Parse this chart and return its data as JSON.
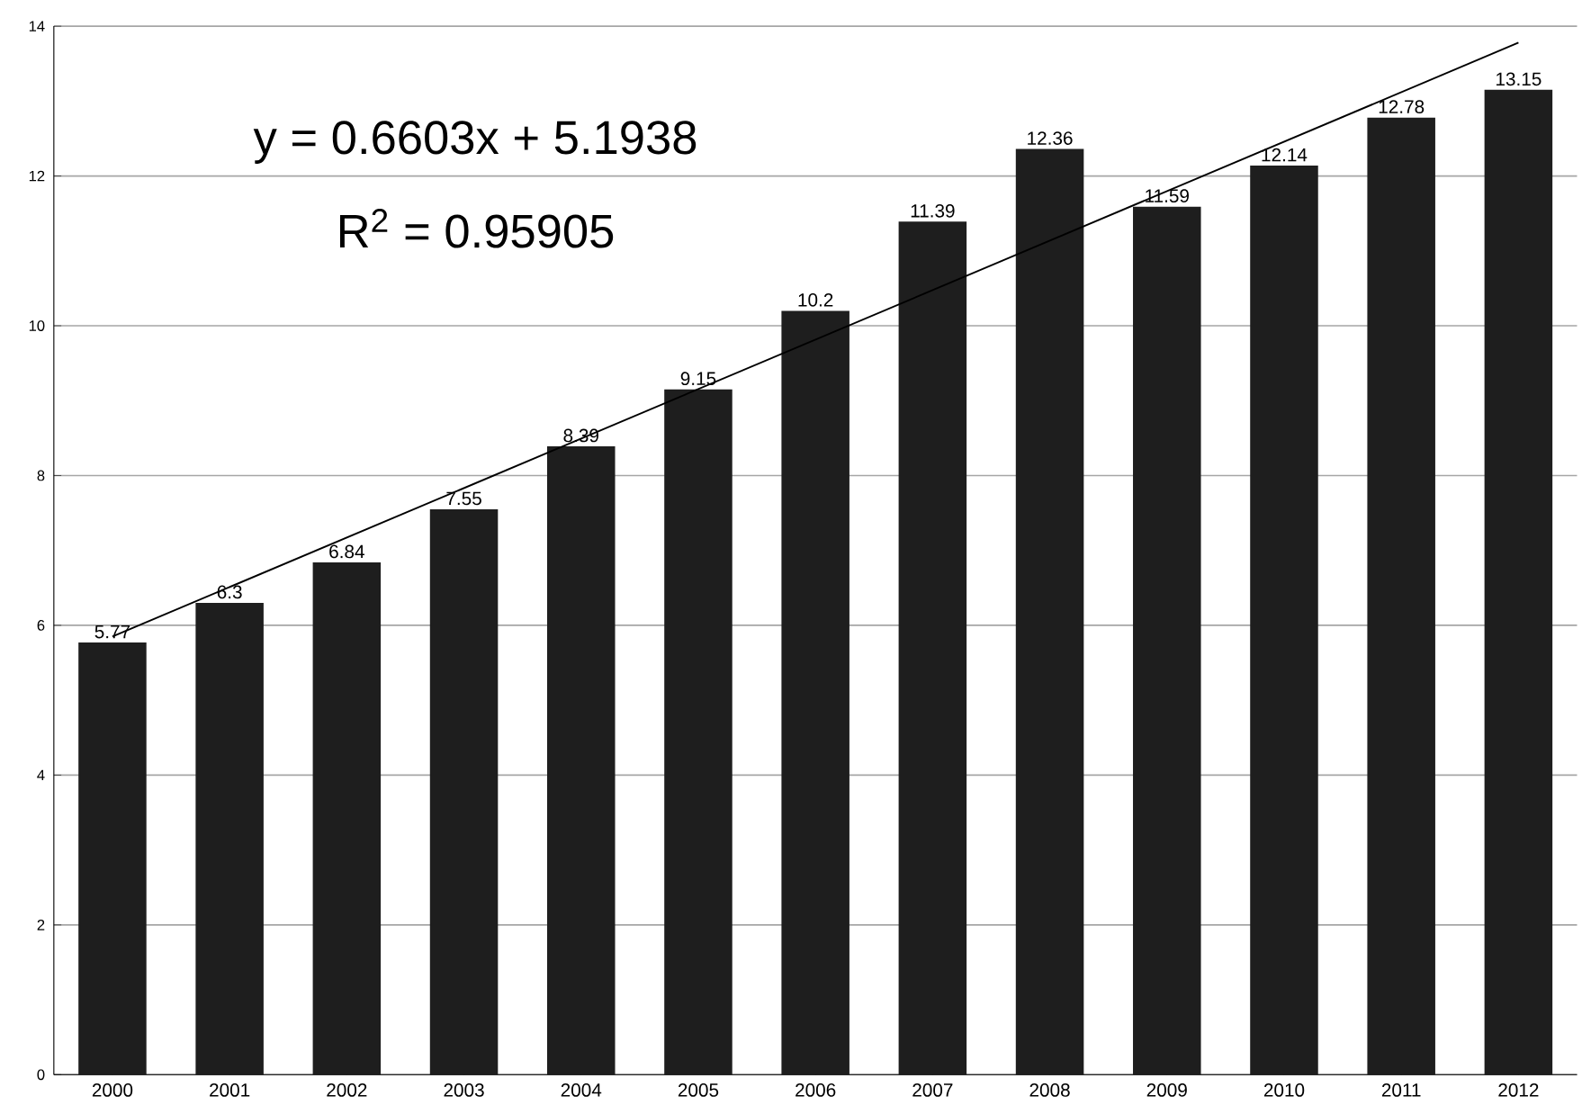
{
  "chart_data": {
    "type": "bar",
    "categories": [
      "2000",
      "2001",
      "2002",
      "2003",
      "2004",
      "2005",
      "2006",
      "2007",
      "2008",
      "2009",
      "2010",
      "2011",
      "2012"
    ],
    "series": [
      {
        "color": "#1e1e1e",
        "values": [
          5.77,
          6.3,
          6.84,
          7.55,
          8.39,
          9.15,
          10.2,
          11.39,
          12.36,
          11.59,
          12.14,
          12.78,
          13.15
        ],
        "value_labels": [
          "5.77",
          "6.3",
          "6.84",
          "7.55",
          "8.39",
          "9.15",
          "10.2",
          "11.39",
          "12.36",
          "11.59",
          "12.14",
          "12.78",
          "13.15"
        ]
      },
      {
        "type": "line",
        "color": "#000000",
        "values": [
          5.85,
          null,
          null,
          null,
          null,
          null,
          null,
          null,
          null,
          null,
          null,
          null,
          13.78
        ]
      }
    ],
    "ylim": [
      0,
      14
    ],
    "yticks": [
      0,
      2,
      4,
      6,
      8,
      10,
      12,
      14
    ],
    "grid": "y",
    "annotations": [
      "y = 0.6603x + 5.1938",
      "R$^{2}$ = 0.95905"
    ]
  }
}
